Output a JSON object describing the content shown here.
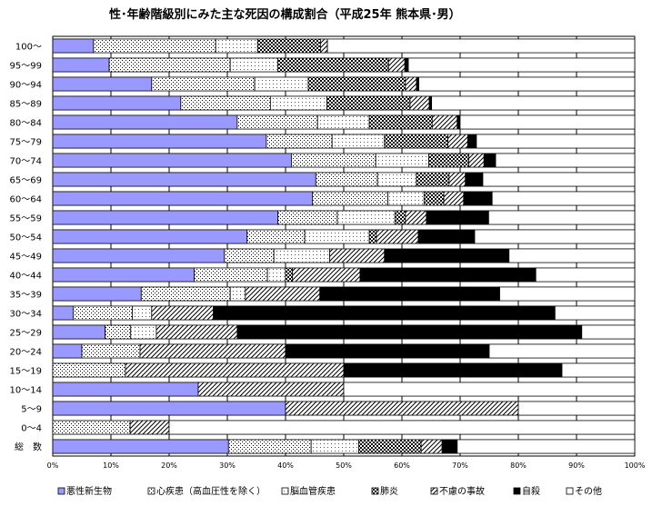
{
  "chart_data": {
    "type": "bar",
    "orientation": "horizontal",
    "stacked": true,
    "title": "性･年齢階級別にみた主な死因の構成割合（平成25年 熊本県･男）",
    "xlim": [
      0,
      100
    ],
    "x_ticks": [
      "0%",
      "10%",
      "20%",
      "30%",
      "40%",
      "50%",
      "60%",
      "70%",
      "80%",
      "90%",
      "100%"
    ],
    "grid": true,
    "legend_position": "bottom",
    "categories": [
      "100～",
      "95～99",
      "90～94",
      "85～89",
      "80～84",
      "75～79",
      "70～74",
      "65～69",
      "60～64",
      "55～59",
      "50～54",
      "45～49",
      "40～44",
      "35～39",
      "30～34",
      "25～29",
      "20～24",
      "15～19",
      "10～14",
      "5～9",
      "0～4",
      "総　数"
    ],
    "series": [
      {
        "name": "悪性新生物",
        "color": "#9999ff",
        "pattern": "solid",
        "values": [
          7,
          9.7,
          17,
          22,
          31.7,
          36.7,
          41,
          45.2,
          44.6,
          38.7,
          33.4,
          29.5,
          24.3,
          15.2,
          3.5,
          9,
          5,
          0,
          25,
          40,
          0,
          30.2
        ]
      },
      {
        "name": "心疾患（高血圧性を除く）",
        "color": "#000000",
        "pattern": "dots",
        "values": [
          21,
          20.8,
          17.7,
          15.4,
          13.8,
          11.3,
          14.5,
          10.6,
          13,
          10.2,
          9.9,
          8.5,
          12.6,
          15.3,
          10.2,
          4.4,
          10,
          12.5,
          0,
          0,
          13.3,
          14.2
        ]
      },
      {
        "name": "脳血管疾患",
        "color": "#000000",
        "pattern": "finedots",
        "values": [
          7.2,
          8.2,
          9.2,
          9.7,
          8.9,
          9,
          9.1,
          6.7,
          6.2,
          9.9,
          11.1,
          9.6,
          3.1,
          2.6,
          3.3,
          4.4,
          0,
          0,
          0,
          0,
          0,
          8.2
        ]
      },
      {
        "name": "肺炎",
        "color": "#000000",
        "pattern": "checks",
        "values": [
          10.8,
          19,
          16.7,
          14.3,
          10.8,
          10.9,
          6.9,
          5.6,
          3.4,
          1.8,
          1.2,
          0,
          1.2,
          0,
          0,
          0,
          0,
          0,
          0,
          0,
          0,
          10.7
        ]
      },
      {
        "name": "不慮の事故",
        "color": "#000000",
        "pattern": "diag",
        "values": [
          1.2,
          2.8,
          1.9,
          3.3,
          4.3,
          3.4,
          2.6,
          2.8,
          3.4,
          3.6,
          7.2,
          9.4,
          11.6,
          12.8,
          10.6,
          13.9,
          25,
          37.5,
          25,
          40,
          6.7,
          3.6
        ]
      },
      {
        "name": "自殺",
        "color": "#000000",
        "pattern": "solid",
        "values": [
          0,
          0.6,
          0.4,
          0.4,
          0.5,
          1.5,
          2,
          3,
          4.9,
          10.7,
          9.7,
          21.4,
          30.2,
          30.9,
          58.7,
          59.2,
          35,
          37.5,
          0,
          0,
          0,
          2.6
        ]
      },
      {
        "name": "その他",
        "color": "#ffffff",
        "pattern": "solid",
        "values": [
          52.8,
          38.9,
          37.1,
          34.9,
          30,
          27.2,
          23.9,
          26.1,
          24.5,
          25.1,
          27.5,
          21.6,
          17,
          23.2,
          13.7,
          9.1,
          25,
          12.5,
          50,
          20,
          80,
          30.5
        ]
      }
    ]
  }
}
